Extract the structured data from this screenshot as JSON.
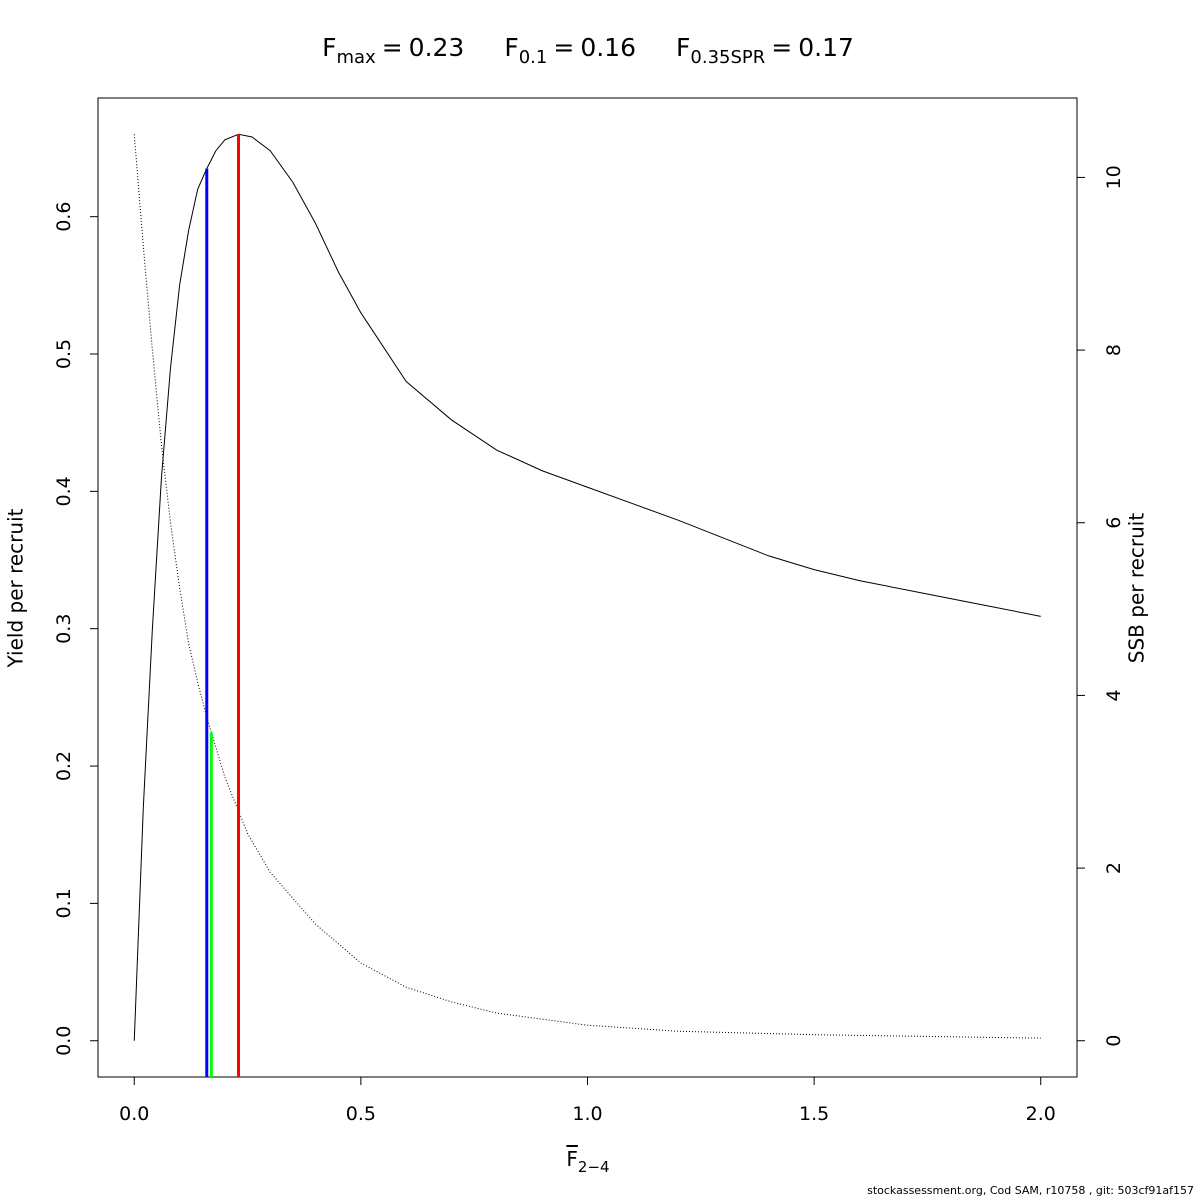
{
  "chart_data": {
    "type": "line",
    "title_items": [
      {
        "symbol": "F",
        "subscript": "max",
        "relation": "=",
        "value": 0.23,
        "color": "#ff0000",
        "line_top": 0.66,
        "line_axis": "y"
      },
      {
        "symbol": "F",
        "subscript": "0.1",
        "relation": "=",
        "value": 0.16,
        "color": "#0000ff",
        "line_top": 0.635,
        "line_axis": "y"
      },
      {
        "symbol": "F",
        "subscript": "0.35SPR",
        "relation": "=",
        "value": 0.17,
        "color": "#00ff00",
        "line_top": 3.57,
        "line_axis": "y2"
      }
    ],
    "x_label": {
      "symbol": "F",
      "subscript": "2−4"
    },
    "y_label": "Yield per recruit",
    "y2_label": "SSB per recruit",
    "footer": "stockassessment.org, Cod SAM, r10758 , git: 503cf91af157",
    "xlim": [
      -0.08,
      2.08
    ],
    "ylim": [
      -0.0264,
      0.6864
    ],
    "y2lim": [
      -0.42,
      10.92
    ],
    "xticks": [
      {
        "value": 0,
        "label": "0.0"
      },
      {
        "value": 0.5,
        "label": "0.5"
      },
      {
        "value": 1,
        "label": "1.0"
      },
      {
        "value": 1.5,
        "label": "1.5"
      },
      {
        "value": 2,
        "label": "2.0"
      }
    ],
    "yticks": [
      {
        "value": 0,
        "label": "0.0"
      },
      0.1,
      0.2,
      0.3,
      0.4,
      0.5,
      0.6
    ],
    "y2ticks": [
      0,
      2,
      4,
      6,
      8,
      10
    ],
    "series": [
      {
        "color": "#000000",
        "dash": "solid",
        "axis": "y",
        "x": [
          0,
          0.02,
          0.04,
          0.06,
          0.08,
          0.1,
          0.12,
          0.14,
          0.16,
          0.18,
          0.2,
          0.23,
          0.26,
          0.3,
          0.35,
          0.4,
          0.45,
          0.5,
          0.6,
          0.7,
          0.8,
          0.9,
          1.0,
          1.2,
          1.4,
          1.5,
          1.6,
          1.8,
          2.0
        ],
        "values": [
          0,
          0.17,
          0.3,
          0.41,
          0.49,
          0.55,
          0.59,
          0.62,
          0.635,
          0.648,
          0.656,
          0.66,
          0.658,
          0.648,
          0.625,
          0.595,
          0.56,
          0.53,
          0.48,
          0.452,
          0.43,
          0.415,
          0.403,
          0.379,
          0.353,
          0.343,
          0.335,
          0.322,
          0.309
        ]
      },
      {
        "color": "#000000",
        "dash": "dotted",
        "axis": "y2",
        "x": [
          0,
          0.02,
          0.04,
          0.06,
          0.08,
          0.1,
          0.12,
          0.14,
          0.16,
          0.2,
          0.25,
          0.3,
          0.4,
          0.5,
          0.6,
          0.7,
          0.8,
          1.0,
          1.2,
          1.5,
          2.0
        ],
        "values": [
          10.5,
          9.2,
          8.0,
          6.9,
          6.0,
          5.25,
          4.6,
          4.15,
          3.75,
          3.05,
          2.4,
          1.95,
          1.35,
          0.9,
          0.62,
          0.45,
          0.32,
          0.18,
          0.11,
          0.07,
          0.03
        ]
      }
    ]
  }
}
